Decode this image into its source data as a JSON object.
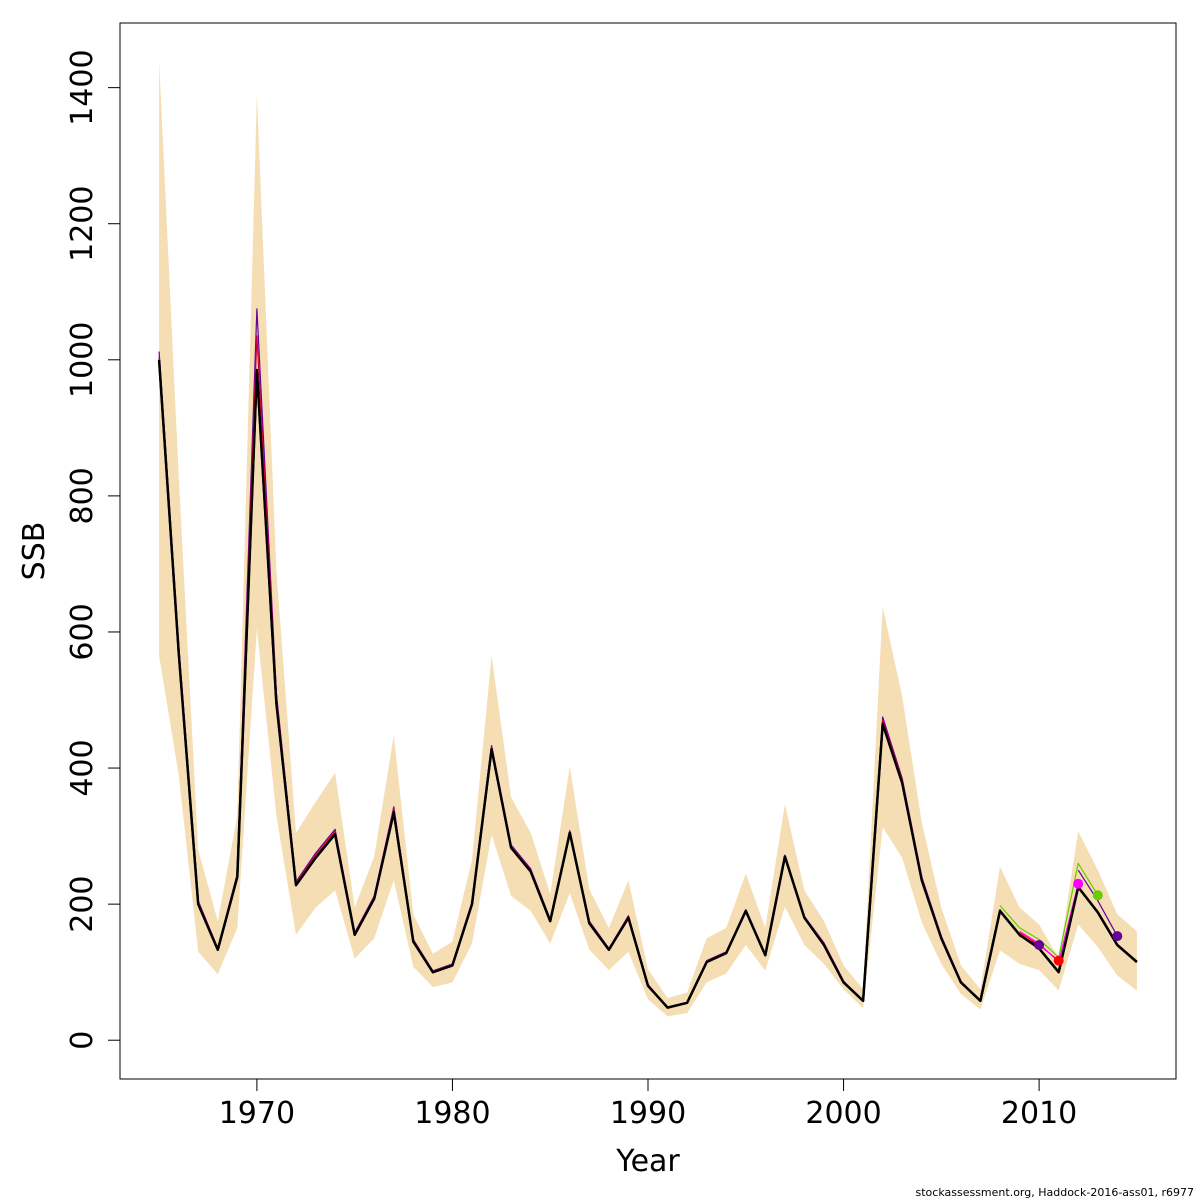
{
  "chart_data": {
    "type": "line",
    "title": "",
    "xlabel": "Year",
    "ylabel": "SSB",
    "xlim": [
      1963,
      2017
    ],
    "ylim": [
      -57,
      1495
    ],
    "xticks": [
      1970,
      1980,
      1990,
      2000,
      2010
    ],
    "yticks": [
      0,
      200,
      400,
      600,
      800,
      1000,
      1200,
      1400
    ],
    "grid": false,
    "colors": {
      "band": "#f5deb3",
      "main": "#000000",
      "red": "#ff0000",
      "magenta": "#ff00ff",
      "green": "#66cc00",
      "purple": "#660099",
      "crimson": "#cc0033"
    },
    "confidence_band": {
      "x": [
        1965,
        1966,
        1967,
        1968,
        1969,
        1970,
        1971,
        1972,
        1973,
        1974,
        1975,
        1976,
        1977,
        1978,
        1979,
        1980,
        1981,
        1982,
        1983,
        1984,
        1985,
        1986,
        1987,
        1988,
        1989,
        1990,
        1991,
        1992,
        1993,
        1994,
        1995,
        1996,
        1997,
        1998,
        1999,
        2000,
        2001,
        2002,
        2003,
        2004,
        2005,
        2006,
        2007,
        2008,
        2009,
        2010,
        2011,
        2012,
        2013,
        2014,
        2015
      ],
      "lower": [
        565,
        390,
        130,
        97,
        165,
        605,
        330,
        155,
        195,
        220,
        120,
        150,
        235,
        108,
        78,
        85,
        142,
        302,
        212,
        190,
        142,
        216,
        133,
        103,
        130,
        60,
        35,
        40,
        85,
        98,
        140,
        102,
        196,
        140,
        112,
        75,
        47,
        313,
        268,
        173,
        112,
        68,
        45,
        132,
        112,
        103,
        73,
        170,
        137,
        95,
        73
      ],
      "upper": [
        1440,
        830,
        280,
        175,
        330,
        1390,
        690,
        305,
        350,
        393,
        195,
        270,
        448,
        185,
        127,
        145,
        265,
        565,
        357,
        305,
        215,
        402,
        222,
        165,
        235,
        104,
        62,
        70,
        150,
        165,
        245,
        165,
        347,
        220,
        175,
        110,
        75,
        637,
        505,
        320,
        195,
        110,
        75,
        255,
        195,
        170,
        120,
        307,
        250,
        185,
        160
      ]
    },
    "series": [
      {
        "color": "#000000",
        "x": [
          1965,
          1966,
          1967,
          1968,
          1969,
          1970,
          1971,
          1972,
          1973,
          1974,
          1975,
          1976,
          1977,
          1978,
          1979,
          1980,
          1981,
          1982,
          1983,
          1984,
          1985,
          1986,
          1987,
          1988,
          1989,
          1990,
          1991,
          1992,
          1993,
          1994,
          1995,
          1996,
          1997,
          1998,
          1999,
          2000,
          2001,
          2002,
          2003,
          2004,
          2005,
          2006,
          2007,
          2008,
          2009,
          2010,
          2011,
          2012,
          2013,
          2014,
          2015
        ],
        "values": [
          1000,
          570,
          200,
          133,
          240,
          985,
          495,
          228,
          268,
          303,
          155,
          208,
          335,
          145,
          100,
          110,
          200,
          428,
          283,
          248,
          175,
          305,
          172,
          133,
          180,
          80,
          48,
          55,
          115,
          128,
          190,
          125,
          270,
          180,
          140,
          85,
          58,
          465,
          378,
          235,
          150,
          85,
          58,
          190,
          155,
          135,
          100,
          225,
          188,
          140,
          115
        ]
      },
      {
        "color": "#660099",
        "x": [
          1965,
          1966,
          1967,
          1968,
          1969,
          1970,
          1971,
          1972,
          1973,
          1974,
          1975,
          1976,
          1977,
          1978,
          1979,
          1980,
          1981,
          1982,
          1983,
          1984,
          1985,
          1986,
          1987,
          1988,
          1989,
          1990,
          1991,
          1992,
          1993,
          1994,
          1995,
          1996,
          1997,
          1998,
          1999,
          2000,
          2001,
          2002,
          2003,
          2004,
          2005,
          2006,
          2007,
          2008,
          2009,
          2010
        ],
        "values": [
          1012,
          580,
          205,
          135,
          245,
          1075,
          510,
          233,
          275,
          310,
          158,
          212,
          343,
          148,
          102,
          112,
          203,
          433,
          287,
          252,
          178,
          308,
          175,
          135,
          183,
          82,
          48,
          55,
          117,
          130,
          192,
          127,
          272,
          182,
          143,
          87,
          58,
          475,
          385,
          240,
          153,
          87,
          58,
          192,
          153,
          140
        ],
        "end_marker": true
      },
      {
        "color": "#ff0000",
        "x": [
          2009,
          2010,
          2011
        ],
        "values": [
          158,
          140,
          117
        ],
        "end_marker": true
      },
      {
        "color": "#ff00ff",
        "x": [
          2009,
          2010,
          2011,
          2012
        ],
        "values": [
          160,
          142,
          115,
          230
        ],
        "end_marker": true
      },
      {
        "color": "#66cc00",
        "x": [
          2008,
          2009,
          2010,
          2011,
          2012,
          2013
        ],
        "values": [
          198,
          165,
          148,
          122,
          260,
          213
        ],
        "end_marker": true
      },
      {
        "color": "#660099",
        "x": [
          2012,
          2013,
          2014
        ],
        "values": [
          250,
          205,
          153
        ],
        "end_marker": true
      },
      {
        "color": "#cc0033",
        "x": [
          1965,
          1966,
          1967,
          1968,
          1969,
          1970,
          1971,
          1972,
          1973,
          1974,
          1975,
          1976,
          1977,
          1978,
          1979,
          1980,
          1981,
          1982,
          1983,
          1984,
          1985,
          1986,
          1987,
          1988,
          1989,
          1990,
          1991,
          1992,
          1993,
          1994,
          1995,
          1996,
          1997,
          1998,
          1999,
          2000,
          2001,
          2002,
          2003,
          2004,
          2005,
          2006,
          2007,
          2008
        ],
        "values": [
          1005,
          575,
          203,
          134,
          243,
          1035,
          505,
          231,
          272,
          307,
          157,
          210,
          340,
          147,
          101,
          111,
          202,
          432,
          285,
          250,
          177,
          307,
          174,
          134,
          182,
          81,
          48,
          55,
          116,
          129,
          191,
          126,
          271,
          181,
          142,
          86,
          58,
          470,
          382,
          238,
          152,
          86,
          58,
          191
        ]
      }
    ]
  },
  "footer": "stockassessment.org, Haddock-2016-ass01, r6977"
}
